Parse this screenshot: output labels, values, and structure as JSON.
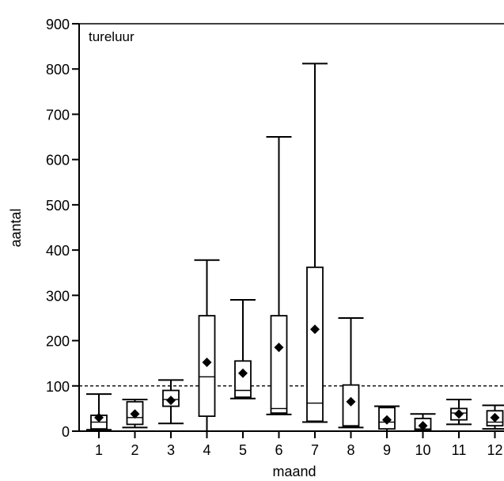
{
  "chart_data": {
    "type": "boxplot",
    "annotation": "tureluur",
    "xlabel": "maand",
    "ylabel": "aantal",
    "ylim": [
      0,
      900
    ],
    "yticks": [
      0,
      100,
      200,
      300,
      400,
      500,
      600,
      700,
      800,
      900
    ],
    "categories": [
      "1",
      "2",
      "3",
      "4",
      "5",
      "6",
      "7",
      "8",
      "9",
      "10",
      "11",
      "12"
    ],
    "reference_line": 100,
    "boxes": [
      {
        "month": "1",
        "whisker_low": 3,
        "q1": 5,
        "median": 20,
        "q3": 35,
        "whisker_high": 82,
        "mean": 30
      },
      {
        "month": "2",
        "whisker_low": 8,
        "q1": 15,
        "median": 30,
        "q3": 65,
        "whisker_high": 70,
        "mean": 38
      },
      {
        "month": "3",
        "whisker_low": 17,
        "q1": 55,
        "median": 70,
        "q3": 90,
        "whisker_high": 113,
        "mean": 68
      },
      {
        "month": "4",
        "whisker_low": 0,
        "q1": 33,
        "median": 120,
        "q3": 255,
        "whisker_high": 378,
        "mean": 152
      },
      {
        "month": "5",
        "whisker_low": 72,
        "q1": 75,
        "median": 90,
        "q3": 155,
        "whisker_high": 290,
        "mean": 128
      },
      {
        "month": "6",
        "whisker_low": 37,
        "q1": 40,
        "median": 50,
        "q3": 255,
        "whisker_high": 650,
        "mean": 185
      },
      {
        "month": "7",
        "whisker_low": 20,
        "q1": 22,
        "median": 62,
        "q3": 362,
        "whisker_high": 812,
        "mean": 225
      },
      {
        "month": "8",
        "whisker_low": 8,
        "q1": 10,
        "median": 12,
        "q3": 102,
        "whisker_high": 250,
        "mean": 65
      },
      {
        "month": "9",
        "whisker_low": 0,
        "q1": 5,
        "median": 20,
        "q3": 52,
        "whisker_high": 55,
        "mean": 25
      },
      {
        "month": "10",
        "whisker_low": 0,
        "q1": 2,
        "median": 5,
        "q3": 28,
        "whisker_high": 38,
        "mean": 12
      },
      {
        "month": "11",
        "whisker_low": 15,
        "q1": 25,
        "median": 40,
        "q3": 50,
        "whisker_high": 70,
        "mean": 38
      },
      {
        "month": "12",
        "whisker_low": 5,
        "q1": 12,
        "median": 20,
        "q3": 45,
        "whisker_high": 57,
        "mean": 30
      }
    ]
  }
}
